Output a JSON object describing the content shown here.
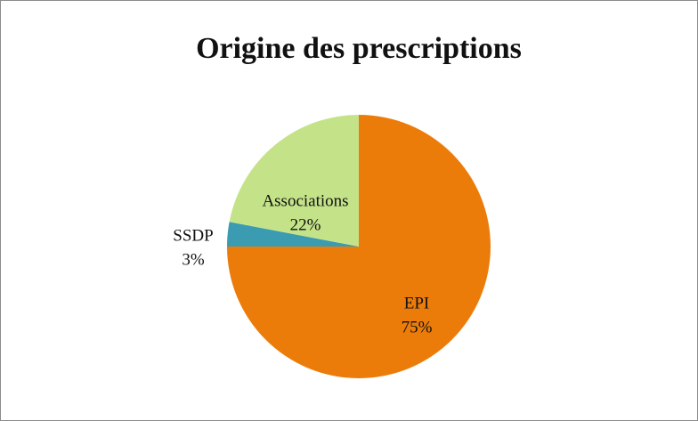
{
  "chart_data": {
    "type": "pie",
    "title": "Origine des prescriptions",
    "categories": [
      "EPI",
      "SSDP",
      "Associations"
    ],
    "values": [
      75,
      3,
      22
    ],
    "value_labels": [
      "75%",
      "3%",
      "22%"
    ],
    "colors": [
      "#ec7c0a",
      "#3b9bb0",
      "#c4e389"
    ]
  }
}
